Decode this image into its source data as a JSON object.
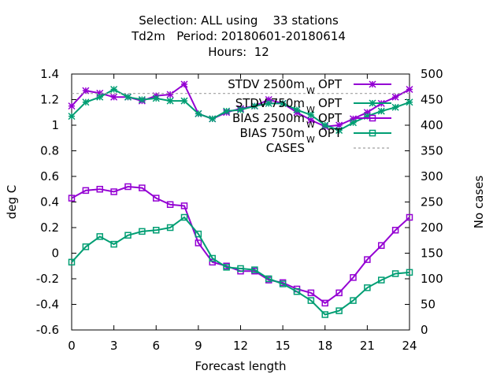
{
  "chart_data": {
    "type": "line",
    "title_lines": [
      "Selection: ALL using    33 stations",
      "Td2m   Period: 20180601-20180614",
      "Hours:  12"
    ],
    "xlabel": "Forecast length",
    "ylabel": "deg C",
    "y2label": "No cases",
    "xlim": [
      0,
      24
    ],
    "ylim": [
      -0.6,
      1.4
    ],
    "y2lim": [
      0,
      500
    ],
    "x_ticks": [
      0,
      3,
      6,
      9,
      12,
      15,
      18,
      21,
      24
    ],
    "y_ticks": [
      -0.6,
      -0.4,
      -0.2,
      0,
      0.2,
      0.4,
      0.6,
      0.8,
      1,
      1.2,
      1.4
    ],
    "y_tick_labels": [
      "-0.6",
      "-0.4",
      "-0.2",
      "0",
      "0.2",
      "0.4",
      "0.6",
      "0.8",
      "1",
      "1.2",
      "1.4"
    ],
    "y2_ticks": [
      0,
      50,
      100,
      150,
      200,
      250,
      300,
      350,
      400,
      450,
      500
    ],
    "grid": false,
    "legend_position": "top-right",
    "x": [
      0,
      1,
      2,
      3,
      4,
      5,
      6,
      7,
      8,
      9,
      10,
      11,
      12,
      13,
      14,
      15,
      16,
      17,
      18,
      19,
      20,
      21,
      22,
      23,
      24
    ],
    "series": [
      {
        "name": "STDV 2500m",
        "name_sub": "W",
        "name_suffix": "OPT",
        "color": "#9400d3",
        "marker": "star",
        "axis": "y",
        "values": [
          1.15,
          1.27,
          1.25,
          1.22,
          1.22,
          1.19,
          1.23,
          1.24,
          1.32,
          1.09,
          1.05,
          1.1,
          1.13,
          1.15,
          1.2,
          1.17,
          1.1,
          1.04,
          0.99,
          1.0,
          1.05,
          1.1,
          1.17,
          1.22,
          1.28
        ]
      },
      {
        "name": "STDV 750m",
        "name_sub": "W",
        "name_suffix": "OPT",
        "color": "#009e73",
        "marker": "star",
        "axis": "y",
        "values": [
          1.07,
          1.18,
          1.22,
          1.28,
          1.22,
          1.2,
          1.21,
          1.19,
          1.19,
          1.09,
          1.05,
          1.11,
          1.12,
          1.15,
          1.17,
          1.17,
          1.12,
          1.08,
          1.0,
          0.96,
          1.02,
          1.07,
          1.11,
          1.14,
          1.18
        ]
      },
      {
        "name": "BIAS 2500m",
        "name_sub": "W",
        "name_suffix": "OPT",
        "color": "#9400d3",
        "marker": "square",
        "axis": "y",
        "values": [
          0.43,
          0.49,
          0.5,
          0.48,
          0.52,
          0.51,
          0.43,
          0.38,
          0.37,
          0.08,
          -0.07,
          -0.1,
          -0.14,
          -0.14,
          -0.21,
          -0.23,
          -0.28,
          -0.31,
          -0.39,
          -0.31,
          -0.19,
          -0.05,
          0.06,
          0.18,
          0.28
        ]
      },
      {
        "name": "BIAS 750m",
        "name_sub": "W",
        "name_suffix": "OPT",
        "color": "#009e73",
        "marker": "square",
        "axis": "y",
        "values": [
          -0.07,
          0.05,
          0.13,
          0.07,
          0.14,
          0.17,
          0.18,
          0.2,
          0.28,
          0.15,
          -0.04,
          -0.11,
          -0.12,
          -0.13,
          -0.2,
          -0.24,
          -0.3,
          -0.37,
          -0.48,
          -0.45,
          -0.37,
          -0.27,
          -0.21,
          -0.16,
          -0.15
        ]
      },
      {
        "name": "CASES",
        "name_sub": "",
        "name_suffix": "",
        "color": "#a0a0a0",
        "marker": "none",
        "dashed": true,
        "axis": "y2",
        "values": [
          462,
          462,
          462,
          462,
          462,
          462,
          462,
          462,
          462,
          462,
          462,
          462,
          462,
          462,
          462,
          462,
          462,
          462,
          462,
          462,
          462,
          462,
          462,
          462,
          462
        ]
      }
    ]
  }
}
